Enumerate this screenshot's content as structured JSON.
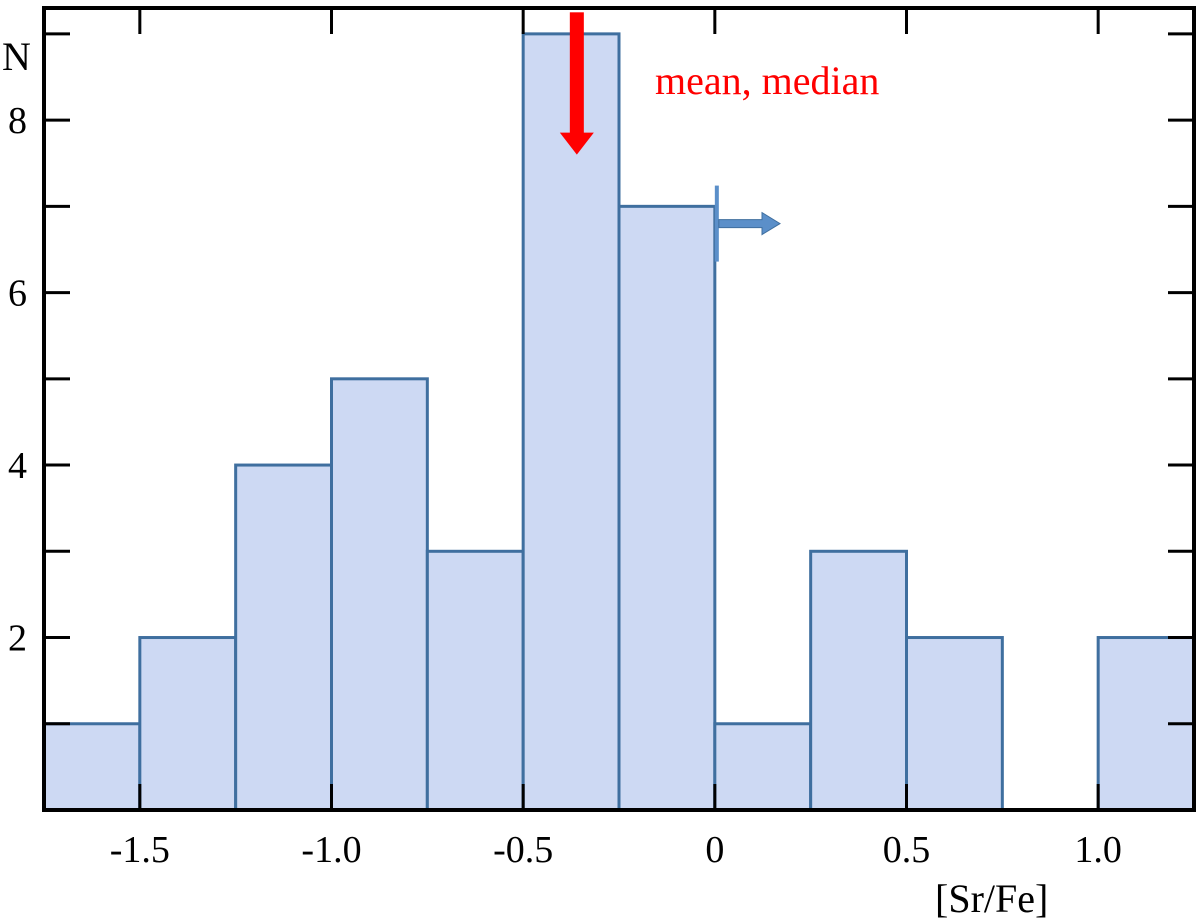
{
  "chart_data": {
    "type": "bar",
    "xlabel": "[Sr/Fe]",
    "ylabel": "N",
    "xlim": [
      -1.75,
      1.25
    ],
    "ylim": [
      0,
      9.3
    ],
    "bin_width": 0.25,
    "bins": [
      {
        "x0": -1.75,
        "x1": -1.5,
        "count": 1
      },
      {
        "x0": -1.5,
        "x1": -1.25,
        "count": 2
      },
      {
        "x0": -1.25,
        "x1": -1.0,
        "count": 4
      },
      {
        "x0": -1.0,
        "x1": -0.75,
        "count": 5
      },
      {
        "x0": -0.75,
        "x1": -0.5,
        "count": 3
      },
      {
        "x0": -0.5,
        "x1": -0.25,
        "count": 9
      },
      {
        "x0": -0.25,
        "x1": 0.0,
        "count": 7
      },
      {
        "x0": 0.0,
        "x1": 0.25,
        "count": 1
      },
      {
        "x0": 0.25,
        "x1": 0.5,
        "count": 3
      },
      {
        "x0": 0.5,
        "x1": 0.75,
        "count": 2
      },
      {
        "x0": 0.75,
        "x1": 1.0,
        "count": 0
      },
      {
        "x0": 1.0,
        "x1": 1.25,
        "count": 2
      }
    ],
    "x_ticks": [
      {
        "value": -1.5,
        "label": "-1.5"
      },
      {
        "value": -1.0,
        "label": "-1.0"
      },
      {
        "value": -0.5,
        "label": "-0.5"
      },
      {
        "value": 0,
        "label": "0"
      },
      {
        "value": 0.5,
        "label": "0.5"
      },
      {
        "value": 1.0,
        "label": "1.0"
      }
    ],
    "y_ticks_major": [
      {
        "value": 2,
        "label": "2"
      },
      {
        "value": 4,
        "label": "4"
      },
      {
        "value": 6,
        "label": "6"
      },
      {
        "value": 8,
        "label": "8"
      }
    ],
    "y_ticks_minor": [
      1,
      3,
      5,
      7,
      9
    ],
    "annotations": {
      "mean_median": {
        "label": "mean, median",
        "x": -0.36,
        "y_from": 9.25,
        "y_to": 7.6,
        "color": "#ff0000"
      },
      "lower_limit": {
        "x": 0.0,
        "y": 6.8,
        "arrow_to_x": 0.17,
        "color": "#5b8fc9"
      }
    },
    "grid": false,
    "colors": {
      "bar_fill": "#cdd9f3",
      "bar_stroke": "#3f6f9f",
      "axis": "#000000"
    }
  }
}
